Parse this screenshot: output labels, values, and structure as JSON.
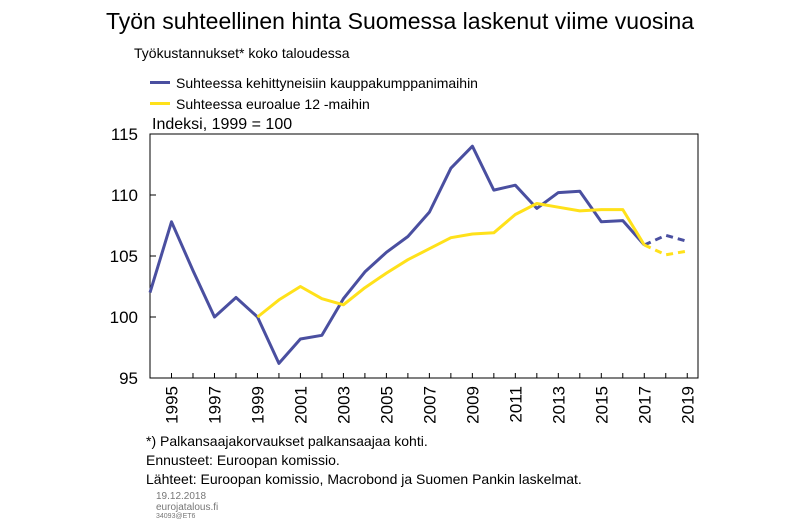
{
  "title": "Työn suhteellinen hinta Suomessa laskenut viime vuosina",
  "subtitle": "Työkustannukset* koko taloudessa",
  "index_label": "Indeksi, 1999 = 100",
  "footnotes": [
    "*) Palkansaajakorvaukset palkansaajaa kohti.",
    "Ennusteet: Euroopan komissio.",
    "Lähteet: Euroopan komissio, Macrobond ja Suomen Pankin laskelmat."
  ],
  "meta": {
    "date": "19.12.2018",
    "site": "eurojatalous.fi",
    "code": "34093@ET6"
  },
  "colors": {
    "series_blue": "#4a4fa0",
    "series_yellow": "#ffe11a",
    "axis": "#000000"
  },
  "chart_data": {
    "type": "line",
    "xlim": [
      1994,
      2019.5
    ],
    "ylim": [
      95,
      115
    ],
    "yticks": [
      95,
      100,
      105,
      110,
      115
    ],
    "xticks": [
      1995,
      1997,
      1999,
      2001,
      2003,
      2005,
      2007,
      2009,
      2011,
      2013,
      2015,
      2017,
      2019
    ],
    "forecast_from": 2017,
    "grid": false,
    "legend_position": "top-left",
    "series": [
      {
        "name": "Suhteessa kehittyneisiin kauppakumppanimaihin",
        "color": "#4a4fa0",
        "points": [
          [
            1994,
            102.0
          ],
          [
            1995,
            107.8
          ],
          [
            1996,
            103.8
          ],
          [
            1997,
            100.0
          ],
          [
            1998,
            101.6
          ],
          [
            1999,
            100.0
          ],
          [
            2000,
            96.2
          ],
          [
            2001,
            98.2
          ],
          [
            2002,
            98.5
          ],
          [
            2003,
            101.5
          ],
          [
            2004,
            103.7
          ],
          [
            2005,
            105.3
          ],
          [
            2006,
            106.6
          ],
          [
            2007,
            108.6
          ],
          [
            2008,
            112.2
          ],
          [
            2009,
            114.0
          ],
          [
            2010,
            110.4
          ],
          [
            2011,
            110.8
          ],
          [
            2012,
            108.9
          ],
          [
            2013,
            110.2
          ],
          [
            2014,
            110.3
          ],
          [
            2015,
            107.8
          ],
          [
            2016,
            107.9
          ],
          [
            2017,
            105.9
          ],
          [
            2018,
            106.7
          ],
          [
            2019,
            106.2
          ]
        ]
      },
      {
        "name": "Suhteessa euroalue 12 -maihin",
        "color": "#ffe11a",
        "points": [
          [
            1999,
            100.0
          ],
          [
            2000,
            101.4
          ],
          [
            2001,
            102.5
          ],
          [
            2002,
            101.5
          ],
          [
            2003,
            101.0
          ],
          [
            2004,
            102.4
          ],
          [
            2005,
            103.6
          ],
          [
            2006,
            104.7
          ],
          [
            2007,
            105.6
          ],
          [
            2008,
            106.5
          ],
          [
            2009,
            106.8
          ],
          [
            2010,
            106.9
          ],
          [
            2011,
            108.4
          ],
          [
            2012,
            109.3
          ],
          [
            2013,
            109.0
          ],
          [
            2014,
            108.7
          ],
          [
            2015,
            108.8
          ],
          [
            2016,
            108.8
          ],
          [
            2017,
            105.9
          ],
          [
            2018,
            105.1
          ],
          [
            2019,
            105.4
          ]
        ]
      }
    ]
  }
}
